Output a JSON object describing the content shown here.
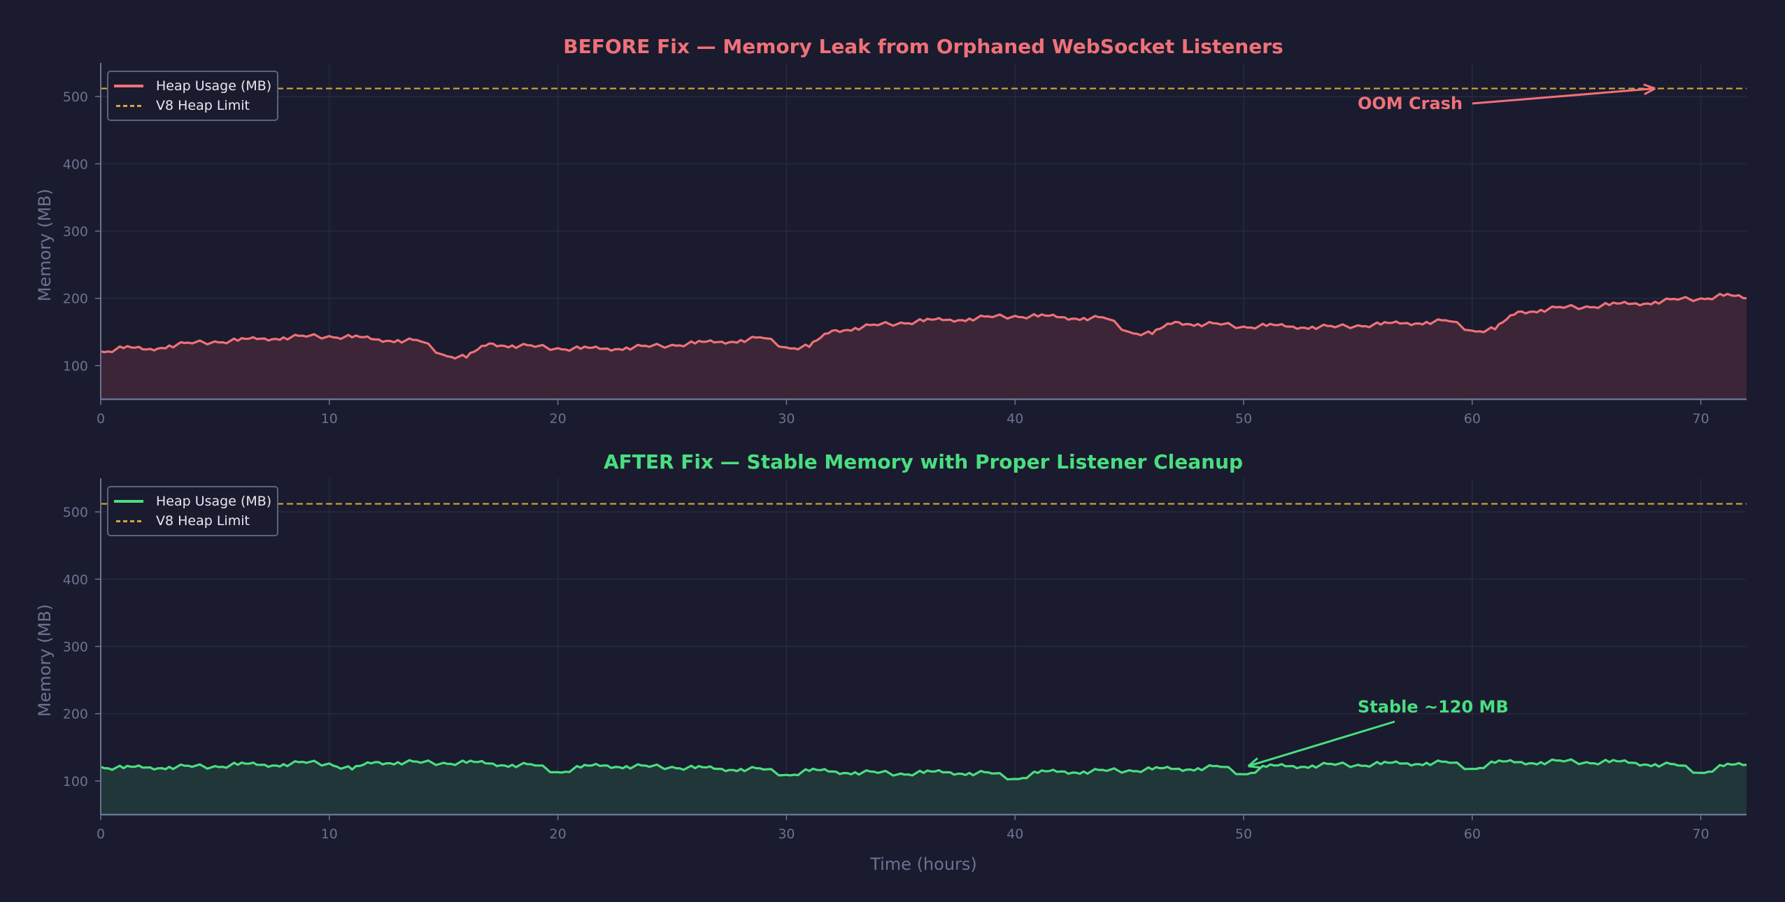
{
  "colors": {
    "background": "#1a1b2e",
    "before": "#f07178",
    "after": "#4ade80",
    "limit": "#d4a73a",
    "grid": "#2a2c42",
    "axis": "#6b7391",
    "before_fill": "#3c2536",
    "after_fill": "#203638"
  },
  "charts": [
    {
      "id": "before",
      "title": "BEFORE Fix — Memory Leak from Orphaned WebSocket Listeners",
      "ylabel": "Memory (MB)",
      "legend": {
        "series": "Heap Usage (MB)",
        "limit": "V8 Heap Limit"
      },
      "annotation": {
        "text": "OOM Crash"
      }
    },
    {
      "id": "after",
      "title": "AFTER Fix — Stable Memory with Proper Listener Cleanup",
      "ylabel": "Memory (MB)",
      "xlabel": "Time (hours)",
      "legend": {
        "series": "Heap Usage (MB)",
        "limit": "V8 Heap Limit"
      },
      "annotation": {
        "text": "Stable ~120 MB"
      }
    }
  ],
  "chart_data": [
    {
      "type": "area",
      "title": "BEFORE Fix — Memory Leak from Orphaned WebSocket Listeners",
      "xlabel": "",
      "ylabel": "Memory (MB)",
      "xlim": [
        0,
        72
      ],
      "ylim": [
        50,
        550
      ],
      "xticks": [
        0,
        10,
        20,
        30,
        40,
        50,
        60,
        70
      ],
      "yticks": [
        100,
        200,
        300,
        400,
        500
      ],
      "grid": true,
      "legend_position": "upper left",
      "hline": {
        "name": "V8 Heap Limit",
        "y": 512,
        "style": "dashed"
      },
      "annotations": [
        {
          "text": "OOM Crash",
          "text_xy": [
            55,
            490
          ],
          "arrow_to": [
            68,
            512
          ]
        }
      ],
      "series": [
        {
          "name": "Heap Usage (MB)",
          "x": [
            0,
            1,
            2,
            3,
            4,
            5,
            6,
            7,
            8,
            9,
            10,
            11,
            12,
            13,
            14,
            15,
            16,
            17,
            18,
            19,
            20,
            21,
            22,
            23,
            24,
            25,
            26,
            27,
            28,
            29,
            30,
            31,
            32,
            33,
            34,
            35,
            36,
            37,
            38,
            39,
            40,
            41,
            42,
            43,
            44,
            45,
            46,
            47,
            48,
            49,
            50,
            51,
            52,
            53,
            54,
            55,
            56,
            57,
            58,
            59,
            60,
            61,
            62,
            63,
            64,
            65,
            66,
            67,
            68,
            69,
            70,
            71,
            72
          ],
          "values": [
            121,
            126,
            124,
            130,
            133,
            136,
            137,
            140,
            142,
            143,
            144,
            142,
            139,
            138,
            136,
            116,
            112,
            133,
            130,
            128,
            126,
            125,
            125,
            127,
            128,
            131,
            133,
            135,
            138,
            141,
            127,
            128,
            152,
            156,
            160,
            164,
            166,
            168,
            170,
            172,
            174,
            173,
            172,
            171,
            170,
            150,
            147,
            165,
            162,
            161,
            158,
            159,
            158,
            158,
            157,
            160,
            161,
            163,
            165,
            166,
            152,
            154,
            180,
            183,
            186,
            188,
            190,
            192,
            195,
            198,
            200,
            204,
            200
          ]
        }
      ]
    },
    {
      "type": "area",
      "title": "AFTER Fix — Stable Memory with Proper Listener Cleanup",
      "xlabel": "Time (hours)",
      "ylabel": "Memory (MB)",
      "xlim": [
        0,
        72
      ],
      "ylim": [
        50,
        550
      ],
      "xticks": [
        0,
        10,
        20,
        30,
        40,
        50,
        60,
        70
      ],
      "yticks": [
        100,
        200,
        300,
        400,
        500
      ],
      "grid": true,
      "legend_position": "upper left",
      "hline": {
        "name": "V8 Heap Limit",
        "y": 512,
        "style": "dashed"
      },
      "annotations": [
        {
          "text": "Stable ~120 MB",
          "text_xy": [
            55,
            205
          ],
          "arrow_to": [
            50.2,
            122
          ]
        }
      ],
      "series": [
        {
          "name": "Heap Usage (MB)",
          "x": [
            0,
            1,
            2,
            3,
            4,
            5,
            6,
            7,
            8,
            9,
            10,
            11,
            12,
            13,
            14,
            15,
            16,
            17,
            18,
            19,
            20,
            21,
            22,
            23,
            24,
            25,
            26,
            27,
            28,
            29,
            30,
            31,
            32,
            33,
            34,
            35,
            36,
            37,
            38,
            39,
            40,
            41,
            42,
            43,
            44,
            45,
            46,
            47,
            48,
            49,
            50,
            51,
            52,
            53,
            54,
            55,
            56,
            57,
            58,
            59,
            60,
            61,
            62,
            63,
            64,
            65,
            66,
            67,
            68,
            69,
            70,
            71,
            72
          ],
          "values": [
            121,
            119,
            120,
            121,
            121,
            122,
            124,
            124,
            125,
            127,
            126,
            117,
            128,
            128,
            127,
            127,
            127,
            126,
            124,
            123,
            113,
            120,
            123,
            122,
            121,
            121,
            119,
            118,
            118,
            117,
            109,
            115,
            114,
            113,
            112,
            111,
            112,
            113,
            112,
            111,
            103,
            112,
            114,
            114,
            115,
            116,
            117,
            118,
            119,
            121,
            110,
            121,
            122,
            123,
            124,
            124,
            125,
            126,
            127,
            127,
            118,
            127,
            128,
            128,
            129,
            128,
            128,
            127,
            125,
            123,
            112,
            122,
            124
          ]
        }
      ]
    }
  ]
}
